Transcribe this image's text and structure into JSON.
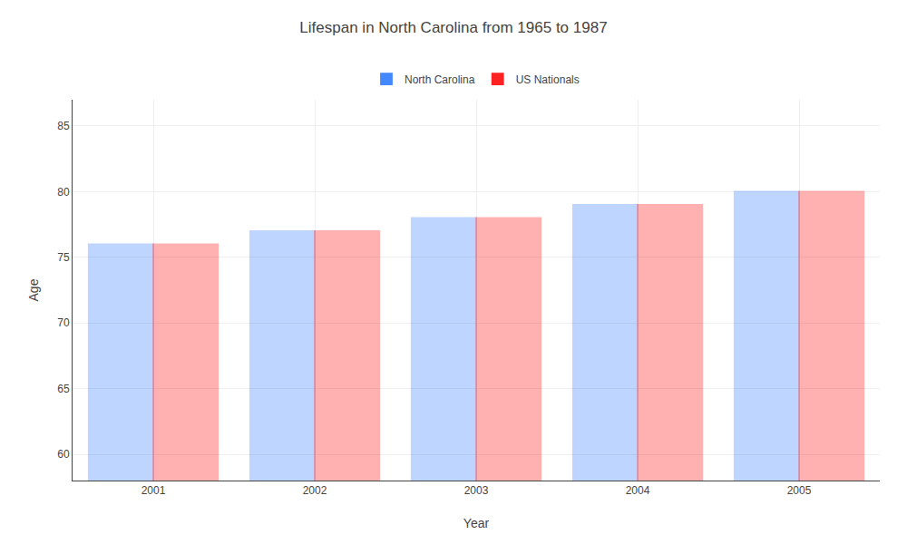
{
  "chart_data": {
    "type": "bar",
    "title": "Lifespan in North Carolina from 1965 to 1987",
    "xlabel": "Year",
    "ylabel": "Age",
    "categories": [
      "2001",
      "2002",
      "2003",
      "2004",
      "2005"
    ],
    "series": [
      {
        "name": "North Carolina",
        "color": "#4488ff",
        "values": [
          76,
          77,
          78,
          79,
          80
        ]
      },
      {
        "name": "US Nationals",
        "color": "#ff2222",
        "values": [
          76,
          77,
          78,
          79,
          80
        ]
      }
    ],
    "ylim": [
      58,
      87
    ],
    "yticks": [
      60,
      65,
      70,
      75,
      80,
      85
    ],
    "grid": true,
    "legend": "upper center"
  }
}
